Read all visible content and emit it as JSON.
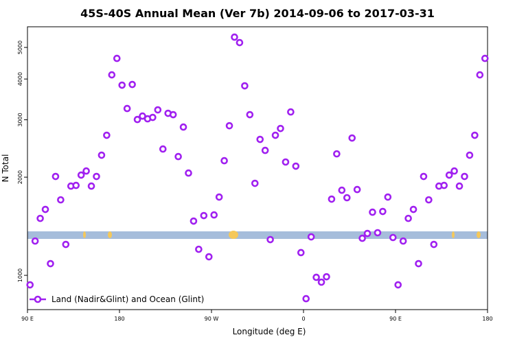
{
  "chart_data": {
    "type": "scatter",
    "title": "45S-40S Annual Mean (Ver 7b)   2014-09-06 to 2017-03-31",
    "x_label": "Longitude (deg E)",
    "y_label": "N Total",
    "log_y": true,
    "xlim": [
      90,
      540
    ],
    "ylim": [
      785,
      5785
    ],
    "xticks": [
      {
        "value": 90,
        "label": "90 E"
      },
      180,
      {
        "value": 270,
        "label": "90 W"
      },
      {
        "value": 360,
        "label": "0"
      },
      {
        "value": 450,
        "label": "90 E"
      },
      {
        "value": 540,
        "label": "180"
      }
    ],
    "yticks": [
      1000,
      2000,
      3000,
      4000,
      5000
    ],
    "x": [
      92.5,
      97.5,
      102.5,
      107.5,
      112.5,
      117.5,
      122.5,
      127.5,
      132.5,
      137.5,
      142.5,
      147.5,
      152.5,
      157.5,
      162.5,
      167.5,
      172.5,
      177.5,
      182.5,
      187.5,
      192.5,
      197.5,
      202.5,
      207.5,
      212.5,
      217.5,
      222.5,
      227.5,
      232.5,
      237.5,
      242.5,
      247.5,
      252.5,
      257.5,
      262.5,
      267.5,
      272.5,
      277.5,
      282.5,
      287.5,
      292.5,
      297.5,
      302.5,
      307.5,
      312.5,
      317.5,
      322.5,
      327.5,
      332.5,
      337.5,
      342.5,
      347.5,
      352.5,
      357.5,
      362.5,
      367.5,
      372.5,
      377.5,
      382.5,
      387.5,
      392.5,
      397.5,
      402.5,
      407.5,
      412.5,
      417.5,
      422.5,
      427.5,
      432.5,
      437.5,
      442.5,
      447.5,
      452.5,
      457.5,
      462.5,
      467.5,
      472.5,
      477.5,
      482.5,
      487.5,
      492.5,
      497.5,
      502.5,
      507.5,
      512.5,
      517.5,
      522.5,
      527.5,
      532.5,
      537.5
    ],
    "series": [
      {
        "name": "Land (Nadir&Glint) and Ocean (Glint)",
        "color": "#a020f0",
        "values": [
          935,
          1274,
          1495,
          1593,
          1086,
          2010,
          1704,
          1244,
          1878,
          1887,
          2030,
          2089,
          1878,
          2010,
          2336,
          2689,
          4119,
          4627,
          3831,
          3248,
          3849,
          3005,
          3079,
          3020,
          3050,
          3217,
          2440,
          3140,
          3110,
          2313,
          2849,
          2059,
          1467,
          1202,
          1525,
          1140,
          1532,
          1738,
          2247,
          2876,
          5377,
          5173,
          3812,
          3110,
          1915,
          2612,
          2416,
          1287,
          2689,
          2821,
          2226,
          3170,
          2162,
          1174,
          848,
          1312,
          986,
          953,
          990,
          1713,
          2358,
          1824,
          1730,
          2637,
          1833,
          1299,
          1344,
          1562,
          1351,
          1570,
          1738,
          1306,
          935,
          1274,
          1495,
          1593,
          1086,
          2010,
          1704,
          1244,
          1878,
          1887,
          2030,
          2089,
          1878,
          2010,
          2336,
          2689,
          4119,
          4627
        ]
      }
    ],
    "legend": "bottom-left"
  }
}
